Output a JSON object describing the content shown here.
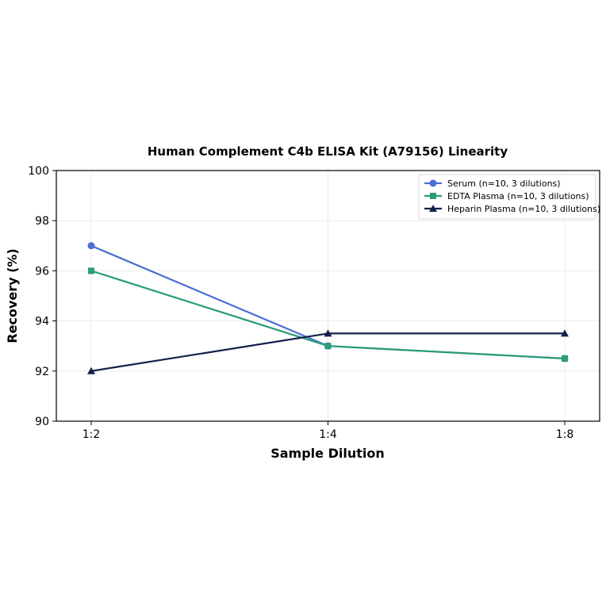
{
  "chart_data": {
    "type": "line",
    "title": "Human Complement C4b ELISA Kit (A79156) Linearity",
    "xlabel": "Sample Dilution",
    "ylabel": "Recovery (%)",
    "categories": [
      "1:2",
      "1:4",
      "1:8"
    ],
    "ylim": [
      90,
      100
    ],
    "yticks": [
      90,
      92,
      94,
      96,
      98,
      100
    ],
    "grid": true,
    "legend_position": "top-right",
    "series": [
      {
        "name": "Serum (n=10, 3 dilutions)",
        "values": [
          97,
          93,
          92.5
        ],
        "color": "#4a6fd4",
        "marker": "circle"
      },
      {
        "name": "EDTA Plasma (n=10, 3 dilutions)",
        "values": [
          96,
          93,
          92.5
        ],
        "color": "#2a9d78",
        "marker": "square"
      },
      {
        "name": "Heparin Plasma (n=10, 3 dilutions)",
        "values": [
          92,
          93.5,
          93.5
        ],
        "color": "#14204a",
        "marker": "triangle"
      }
    ]
  }
}
